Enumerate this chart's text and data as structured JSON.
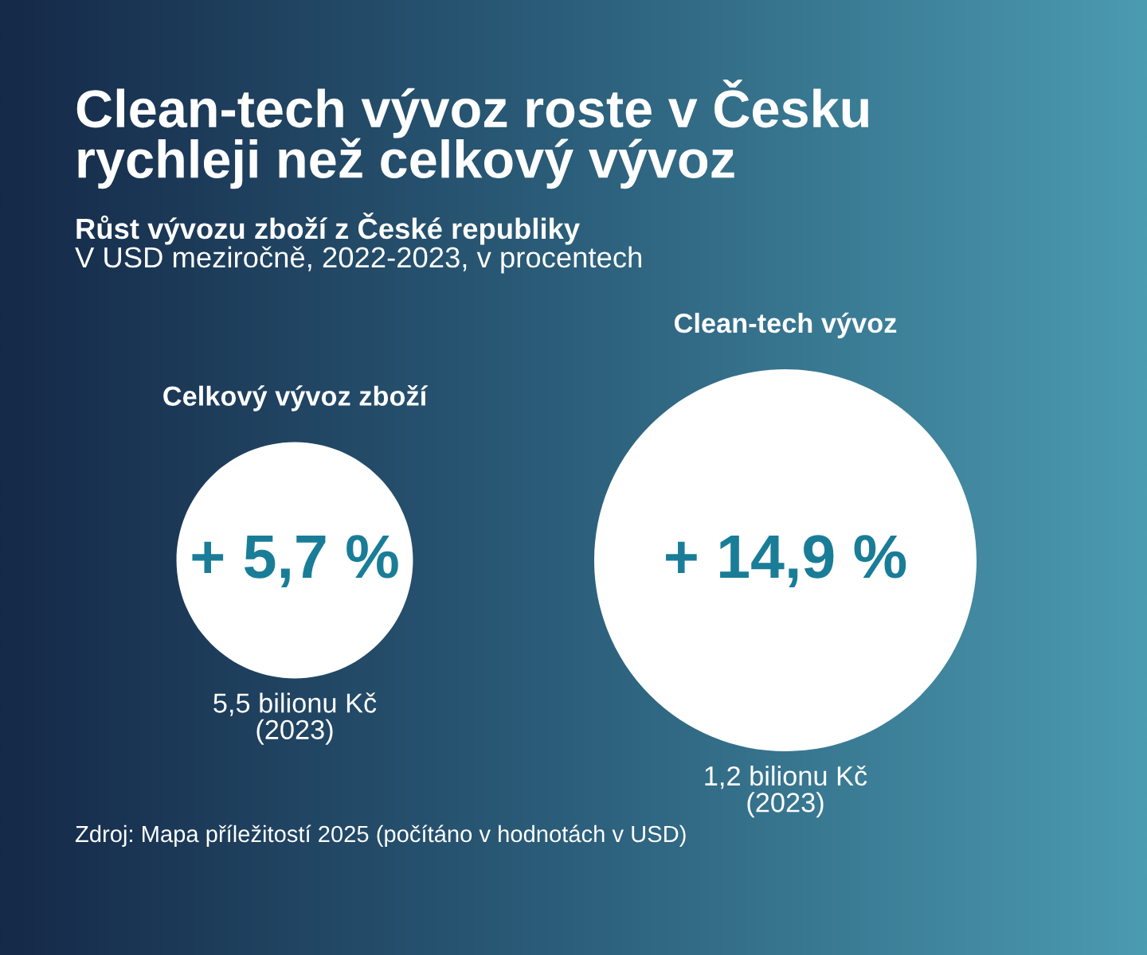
{
  "chart_data": {
    "type": "other",
    "title": "Clean-tech vývoz roste v Česku\nrychleji než celkový vývoz",
    "subtitle": "Růst vývozu zboží z České republiky",
    "categories": [
      "Celkový vývoz zboží",
      "Clean-tech vývoz"
    ],
    "values": [
      5.7,
      14.9
    ],
    "value_labels": [
      "+ 5,7 %",
      "+ 14,9 %"
    ],
    "colors": [
      "#ffffff",
      "#ffffff"
    ],
    "annotations": [
      "V USD meziročně, 2022-2023, v procentech",
      {
        "text": "5,5 bilionu Kč\n(2023)",
        "x": "Celkový vývoz zboží"
      },
      {
        "text": "1,2 bilionu Kč\n(2023)",
        "x": "Clean-tech vývoz"
      },
      "Zdroj: Mapa příležitostí 2025 (počítáno v hodnotách v USD)"
    ]
  }
}
